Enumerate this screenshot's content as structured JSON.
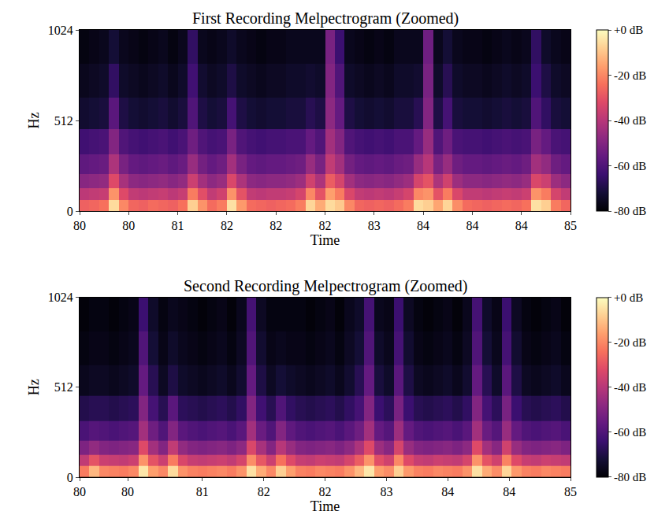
{
  "chart_data": [
    {
      "type": "heatmap",
      "title": "First Recording Melpectrogram (Zoomed)",
      "x_label": "Time",
      "y_label": "Hz",
      "x": [
        80.05,
        80.15,
        80.25,
        80.35,
        80.45,
        80.55,
        80.65,
        80.75,
        80.85,
        80.95,
        81.05,
        81.15,
        81.25,
        81.35,
        81.45,
        81.55,
        81.65,
        81.75,
        81.85,
        81.95,
        82.05,
        82.15,
        82.25,
        82.35,
        82.45,
        82.55,
        82.65,
        82.75,
        82.85,
        82.95,
        83.05,
        83.15,
        83.25,
        83.35,
        83.45,
        83.55,
        83.65,
        83.75,
        83.85,
        83.95,
        84.05,
        84.15,
        84.25,
        84.35,
        84.45,
        84.55,
        84.65,
        84.75,
        84.85,
        84.95
      ],
      "y": [
        32,
        96,
        160,
        256,
        384,
        544,
        736,
        928
      ],
      "cells": [
        [
          -27,
          -26,
          -24,
          -6,
          -20,
          -26,
          -27,
          -25,
          -26,
          -27,
          -24,
          -8,
          -18,
          -25,
          -22,
          -5,
          -17,
          -25,
          -26,
          -27,
          -26,
          -25,
          -22,
          -7,
          -14,
          -6,
          -9,
          -20,
          -26,
          -27,
          -26,
          -27,
          -25,
          -22,
          -6,
          -8,
          -15,
          -7,
          -19,
          -25,
          -26,
          -27,
          -26,
          -25,
          -26,
          -24,
          -5,
          -8,
          -22,
          -26
        ],
        [
          -39,
          -38,
          -37,
          -18,
          -32,
          -38,
          -39,
          -38,
          -37,
          -39,
          -37,
          -22,
          -31,
          -38,
          -35,
          -18,
          -30,
          -38,
          -39,
          -38,
          -38,
          -37,
          -34,
          -20,
          -30,
          -16,
          -22,
          -33,
          -38,
          -39,
          -38,
          -39,
          -37,
          -34,
          -20,
          -18,
          -30,
          -22,
          -33,
          -38,
          -38,
          -39,
          -38,
          -37,
          -38,
          -36,
          -18,
          -22,
          -34,
          -38
        ],
        [
          -49,
          -48,
          -47,
          -32,
          -43,
          -48,
          -49,
          -48,
          -47,
          -49,
          -47,
          -36,
          -44,
          -48,
          -46,
          -33,
          -42,
          -48,
          -49,
          -48,
          -48,
          -47,
          -45,
          -35,
          -42,
          -28,
          -34,
          -44,
          -48,
          -49,
          -48,
          -49,
          -47,
          -45,
          -34,
          -30,
          -42,
          -35,
          -45,
          -48,
          -48,
          -49,
          -48,
          -47,
          -48,
          -46,
          -33,
          -36,
          -45,
          -48
        ],
        [
          -57,
          -56,
          -55,
          -42,
          -52,
          -56,
          -57,
          -56,
          -55,
          -57,
          -55,
          -46,
          -53,
          -56,
          -54,
          -44,
          -52,
          -56,
          -57,
          -56,
          -56,
          -55,
          -54,
          -46,
          -52,
          -38,
          -44,
          -53,
          -56,
          -57,
          -56,
          -57,
          -55,
          -54,
          -46,
          -40,
          -52,
          -46,
          -54,
          -56,
          -56,
          -57,
          -56,
          -55,
          -56,
          -54,
          -44,
          -47,
          -54,
          -56
        ],
        [
          -63,
          -62,
          -61,
          -50,
          -60,
          -62,
          -63,
          -62,
          -61,
          -63,
          -61,
          -54,
          -60,
          -62,
          -61,
          -52,
          -60,
          -62,
          -63,
          -62,
          -62,
          -61,
          -61,
          -56,
          -60,
          -44,
          -50,
          -60,
          -62,
          -63,
          -62,
          -63,
          -61,
          -61,
          -56,
          -46,
          -60,
          -54,
          -61,
          -62,
          -62,
          -63,
          -62,
          -61,
          -62,
          -61,
          -52,
          -56,
          -61,
          -62
        ],
        [
          -73,
          -72,
          -71,
          -58,
          -70,
          -72,
          -73,
          -72,
          -71,
          -73,
          -71,
          -60,
          -70,
          -72,
          -71,
          -62,
          -70,
          -72,
          -73,
          -72,
          -72,
          -71,
          -71,
          -68,
          -70,
          -48,
          -56,
          -70,
          -72,
          -73,
          -72,
          -73,
          -71,
          -71,
          -68,
          -50,
          -70,
          -62,
          -71,
          -72,
          -72,
          -73,
          -72,
          -71,
          -72,
          -71,
          -60,
          -66,
          -71,
          -72
        ],
        [
          -76,
          -75,
          -74,
          -66,
          -74,
          -75,
          -76,
          -75,
          -74,
          -76,
          -74,
          -63,
          -73,
          -75,
          -74,
          -70,
          -74,
          -75,
          -76,
          -75,
          -75,
          -74,
          -74,
          -73,
          -74,
          -50,
          -60,
          -74,
          -75,
          -76,
          -75,
          -76,
          -74,
          -74,
          -73,
          -52,
          -74,
          -68,
          -74,
          -75,
          -75,
          -76,
          -75,
          -74,
          -75,
          -74,
          -64,
          -70,
          -74,
          -75
        ],
        [
          -78,
          -77,
          -76,
          -72,
          -76,
          -77,
          -78,
          -77,
          -76,
          -78,
          -76,
          -66,
          -76,
          -77,
          -76,
          -74,
          -76,
          -77,
          -78,
          -77,
          -77,
          -76,
          -76,
          -76,
          -76,
          -52,
          -64,
          -76,
          -77,
          -78,
          -77,
          -78,
          -76,
          -76,
          -76,
          -54,
          -76,
          -72,
          -76,
          -77,
          -77,
          -78,
          -77,
          -76,
          -77,
          -76,
          -66,
          -74,
          -76,
          -77
        ]
      ],
      "xlim": [
        80,
        85
      ],
      "ylim": [
        0,
        1024
      ],
      "xticks": [
        80,
        {
          "value": 80.5,
          "label": "80"
        },
        81,
        {
          "value": 81.5,
          "label": "82"
        },
        82,
        {
          "value": 82.5,
          "label": "82"
        },
        83,
        {
          "value": 83.5,
          "label": "84"
        },
        84,
        {
          "value": 84.5,
          "label": "84"
        },
        85
      ],
      "yticks": [
        0,
        512,
        1024
      ],
      "colorbar_range": [
        -80,
        0
      ],
      "colorbar_ticks": [
        {
          "value": 0,
          "label": "+0 dB"
        },
        {
          "value": -20,
          "label": "-20 dB"
        },
        {
          "value": -40,
          "label": "-40 dB"
        },
        {
          "value": -60,
          "label": "-60 dB"
        },
        {
          "value": -80,
          "label": "-80 dB"
        }
      ]
    },
    {
      "type": "heatmap",
      "title": "Second Recording Melpectrogram (Zoomed)",
      "x_label": "Time",
      "y_label": "Hz",
      "x": [
        80.05,
        80.15,
        80.25,
        80.35,
        80.45,
        80.55,
        80.65,
        80.75,
        80.85,
        80.95,
        81.05,
        81.15,
        81.25,
        81.35,
        81.45,
        81.55,
        81.65,
        81.75,
        81.85,
        81.95,
        82.05,
        82.15,
        82.25,
        82.35,
        82.45,
        82.55,
        82.65,
        82.75,
        82.85,
        82.95,
        83.05,
        83.15,
        83.25,
        83.35,
        83.45,
        83.55,
        83.65,
        83.75,
        83.85,
        83.95,
        84.05,
        84.15,
        84.25,
        84.35,
        84.45,
        84.55,
        84.65,
        84.75,
        84.85,
        84.95
      ],
      "y": [
        32,
        96,
        160,
        256,
        384,
        544,
        736,
        928
      ],
      "cells": [
        [
          -22,
          -12,
          -20,
          -21,
          -22,
          -20,
          -4,
          -16,
          -20,
          -6,
          -18,
          -21,
          -22,
          -21,
          -20,
          -22,
          -18,
          -5,
          -14,
          -20,
          -8,
          -16,
          -21,
          -22,
          -20,
          -21,
          -22,
          -18,
          -12,
          -4,
          -16,
          -19,
          -8,
          -17,
          -21,
          -22,
          -20,
          -21,
          -22,
          -18,
          -5,
          -14,
          -19,
          -7,
          -17,
          -21,
          -22,
          -20,
          -21,
          -22
        ],
        [
          -38,
          -30,
          -36,
          -37,
          -38,
          -36,
          -18,
          -30,
          -36,
          -22,
          -33,
          -37,
          -38,
          -37,
          -36,
          -38,
          -34,
          -19,
          -29,
          -36,
          -24,
          -32,
          -37,
          -38,
          -36,
          -37,
          -38,
          -34,
          -28,
          -18,
          -31,
          -35,
          -20,
          -32,
          -37,
          -38,
          -36,
          -37,
          -38,
          -34,
          -18,
          -30,
          -35,
          -21,
          -32,
          -37,
          -38,
          -36,
          -37,
          -38
        ],
        [
          -51,
          -47,
          -50,
          -51,
          -50,
          -49,
          -32,
          -44,
          -50,
          -38,
          -47,
          -50,
          -51,
          -50,
          -49,
          -51,
          -48,
          -33,
          -43,
          -50,
          -40,
          -46,
          -50,
          -51,
          -50,
          -49,
          -51,
          -48,
          -42,
          -32,
          -45,
          -49,
          -34,
          -46,
          -50,
          -51,
          -50,
          -49,
          -51,
          -48,
          -32,
          -44,
          -49,
          -35,
          -46,
          -50,
          -51,
          -50,
          -49,
          -51
        ],
        [
          -61,
          -59,
          -60,
          -61,
          -60,
          -59,
          -44,
          -54,
          -60,
          -50,
          -58,
          -60,
          -61,
          -60,
          -59,
          -61,
          -58,
          -44,
          -55,
          -60,
          -50,
          -57,
          -60,
          -61,
          -60,
          -59,
          -61,
          -58,
          -54,
          -44,
          -56,
          -59,
          -45,
          -56,
          -60,
          -61,
          -60,
          -59,
          -61,
          -58,
          -44,
          -55,
          -59,
          -46,
          -56,
          -60,
          -61,
          -60,
          -59,
          -61
        ],
        [
          -69,
          -68,
          -68,
          -69,
          -68,
          -67,
          -50,
          -62,
          -68,
          -58,
          -67,
          -68,
          -69,
          -68,
          -67,
          -69,
          -66,
          -50,
          -63,
          -68,
          -60,
          -66,
          -68,
          -69,
          -68,
          -67,
          -69,
          -66,
          -62,
          -50,
          -64,
          -67,
          -52,
          -64,
          -68,
          -69,
          -68,
          -67,
          -69,
          -66,
          -50,
          -62,
          -67,
          -52,
          -64,
          -68,
          -69,
          -68,
          -67,
          -69
        ],
        [
          -76,
          -75,
          -75,
          -76,
          -75,
          -74,
          -56,
          -68,
          -75,
          -70,
          -74,
          -75,
          -76,
          -75,
          -74,
          -76,
          -73,
          -56,
          -70,
          -75,
          -72,
          -74,
          -75,
          -76,
          -75,
          -74,
          -76,
          -73,
          -68,
          -56,
          -71,
          -74,
          -58,
          -70,
          -75,
          -76,
          -75,
          -74,
          -76,
          -73,
          -56,
          -68,
          -74,
          -58,
          -70,
          -75,
          -76,
          -75,
          -74,
          -76
        ],
        [
          -78,
          -77,
          -77,
          -78,
          -77,
          -76,
          -60,
          -72,
          -77,
          -74,
          -76,
          -77,
          -78,
          -77,
          -76,
          -78,
          -75,
          -60,
          -73,
          -77,
          -76,
          -77,
          -77,
          -78,
          -77,
          -76,
          -78,
          -75,
          -72,
          -60,
          -74,
          -76,
          -62,
          -73,
          -77,
          -78,
          -77,
          -76,
          -78,
          -75,
          -60,
          -72,
          -76,
          -62,
          -73,
          -77,
          -78,
          -77,
          -76,
          -78
        ],
        [
          -79,
          -78,
          -78,
          -79,
          -78,
          -77,
          -64,
          -74,
          -78,
          -76,
          -77,
          -78,
          -79,
          -78,
          -77,
          -79,
          -76,
          -62,
          -75,
          -78,
          -78,
          -78,
          -78,
          -79,
          -78,
          -77,
          -79,
          -76,
          -74,
          -62,
          -76,
          -77,
          -64,
          -75,
          -78,
          -79,
          -78,
          -77,
          -79,
          -76,
          -62,
          -74,
          -77,
          -64,
          -75,
          -78,
          -79,
          -78,
          -77,
          -79
        ]
      ],
      "xlim": [
        80,
        85
      ],
      "ylim": [
        0,
        1024
      ],
      "xticks": [
        80,
        {
          "value": 80.49,
          "label": "80"
        },
        {
          "value": 81.25,
          "label": "81"
        },
        {
          "value": 81.875,
          "label": "82"
        },
        {
          "value": 82.5,
          "label": "82"
        },
        {
          "value": 83.125,
          "label": "83"
        },
        {
          "value": 83.75,
          "label": "84"
        },
        {
          "value": 84.375,
          "label": "84"
        },
        85
      ],
      "yticks": [
        0,
        512,
        1024
      ],
      "colorbar_range": [
        -80,
        0
      ],
      "colorbar_ticks": [
        {
          "value": 0,
          "label": "+0 dB"
        },
        {
          "value": -20,
          "label": "-20 dB"
        },
        {
          "value": -40,
          "label": "-40 dB"
        },
        {
          "value": -60,
          "label": "-60 dB"
        },
        {
          "value": -80,
          "label": "-80 dB"
        }
      ]
    }
  ]
}
